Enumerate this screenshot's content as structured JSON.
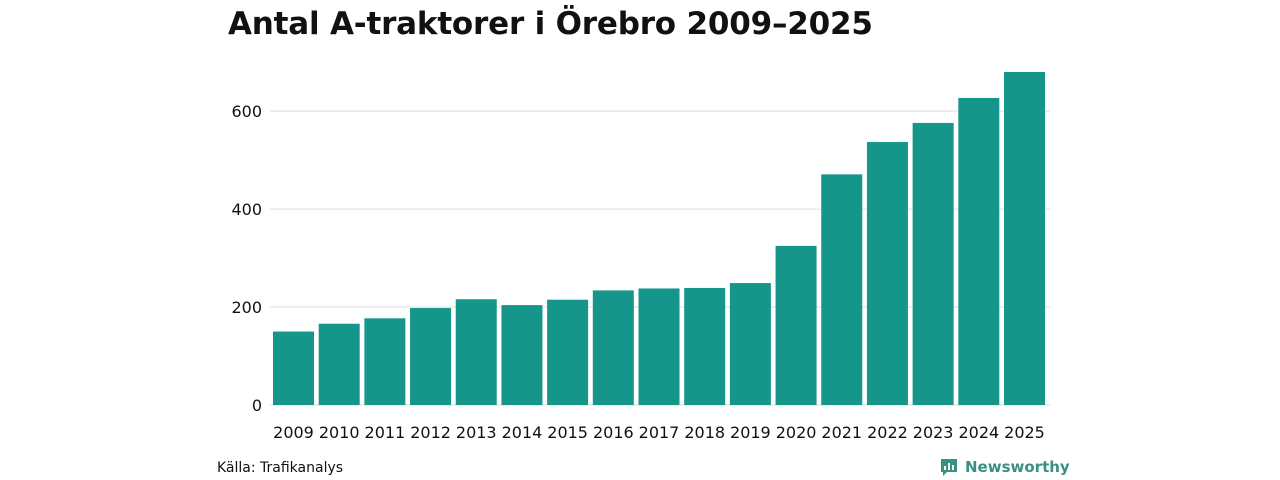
{
  "title": "Antal A-traktorer i Örebro 2009–2025",
  "source": "Källa: Trafikanalys",
  "brand": {
    "name": "Newsworthy",
    "icon": "newsworthy-logo-icon",
    "color": "#3a8f83"
  },
  "chart_data": {
    "type": "bar",
    "title": "Antal A-traktorer i Örebro 2009–2025",
    "xlabel": "",
    "ylabel": "",
    "categories": [
      "2009",
      "2010",
      "2011",
      "2012",
      "2013",
      "2014",
      "2015",
      "2016",
      "2017",
      "2018",
      "2019",
      "2020",
      "2021",
      "2022",
      "2023",
      "2024",
      "2025"
    ],
    "values": [
      150,
      166,
      177,
      198,
      216,
      204,
      215,
      234,
      238,
      239,
      249,
      325,
      471,
      537,
      576,
      627,
      680
    ],
    "ylim": [
      0,
      680
    ],
    "yticks": [
      0,
      200,
      400,
      600
    ],
    "ytick_labels": [
      "0",
      "200",
      "400",
      "600"
    ],
    "grid": true,
    "bar_color": "#16968a",
    "grid_color": "#dddddd"
  }
}
